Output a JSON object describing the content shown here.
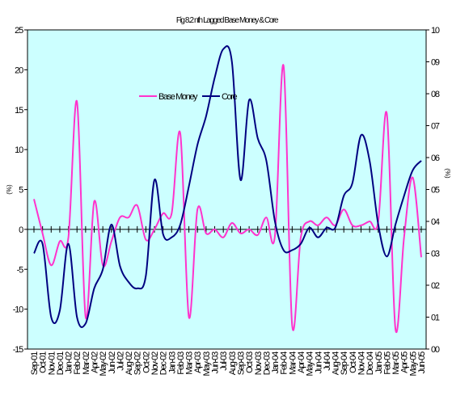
{
  "chart_data": {
    "type": "line",
    "title": "Fig 8.2 nth Lagged Base Money & Core",
    "ylabel": "(%)",
    "y2label": "(%)",
    "ylim": [
      -15,
      25
    ],
    "y2lim": [
      0,
      10
    ],
    "yticks": [
      "25",
      "20",
      "15",
      "10",
      "5",
      "0",
      "-5",
      "-10",
      "-15"
    ],
    "y2ticks": [
      "10",
      "09",
      "08",
      "07",
      "06",
      "05",
      "04",
      "03",
      "02",
      "01",
      "00"
    ],
    "legend": "upper-center",
    "background": "#ccffff",
    "categories": [
      "Sep-01",
      "Oct-01",
      "Nov-01",
      "Dec-01",
      "Jan-02",
      "Feb-02",
      "Mar-02",
      "Apr-02",
      "May-02",
      "Jun-02",
      "Jul-02",
      "Aug-02",
      "Sep-02",
      "Oct-02",
      "Nov-02",
      "Dec-02",
      "Jan-03",
      "Feb-03",
      "Mar-03",
      "Apr-03",
      "May-03",
      "Jun-03",
      "Jul-03",
      "Aug-03",
      "Sep-03",
      "Oct-03",
      "Nov-03",
      "Dec-03",
      "Jan-04",
      "Feb-04",
      "Mar-04",
      "Apr-04",
      "May-04",
      "Jun-04",
      "Jul-04",
      "Aug-04",
      "Sep-04",
      "Oct-04",
      "Nov-04",
      "Dec-04",
      "Jan-05",
      "Feb-05",
      "Mar-05",
      "Apr-05",
      "May-05",
      "Jun-05"
    ],
    "series": [
      {
        "name": "Base Money",
        "axis": "left",
        "color": "#ff33cc",
        "values": [
          3.8,
          -0.5,
          -4.5,
          -1.5,
          -1,
          16,
          -11,
          3.5,
          -4.5,
          -1.5,
          1.5,
          1.5,
          3,
          -1.3,
          0,
          2,
          2,
          12,
          -11,
          2.5,
          -0.5,
          0,
          -1,
          0.8,
          -0.5,
          0,
          -0.7,
          1.5,
          -0.8,
          20.5,
          -12,
          -1,
          1,
          0.5,
          1.5,
          0.5,
          2.5,
          0.5,
          0.5,
          1,
          1,
          14.5,
          -12.5,
          -1,
          6.5,
          -3.5
        ]
      },
      {
        "name": "Core",
        "axis": "right",
        "color": "#000080",
        "values": [
          3.0,
          3.3,
          1.0,
          1.2,
          3.3,
          1.0,
          0.8,
          1.9,
          2.5,
          3.9,
          2.6,
          2.1,
          1.9,
          2.3,
          5.3,
          3.6,
          3.5,
          3.9,
          5.1,
          6.4,
          7.3,
          8.5,
          9.4,
          9.0,
          5.3,
          7.8,
          6.6,
          5.9,
          4.0,
          3.1,
          3.1,
          3.3,
          3.8,
          3.5,
          3.8,
          3.8,
          4.8,
          5.2,
          6.7,
          5.9,
          3.9,
          2.9,
          3.9,
          4.8,
          5.6,
          5.9
        ]
      }
    ]
  }
}
